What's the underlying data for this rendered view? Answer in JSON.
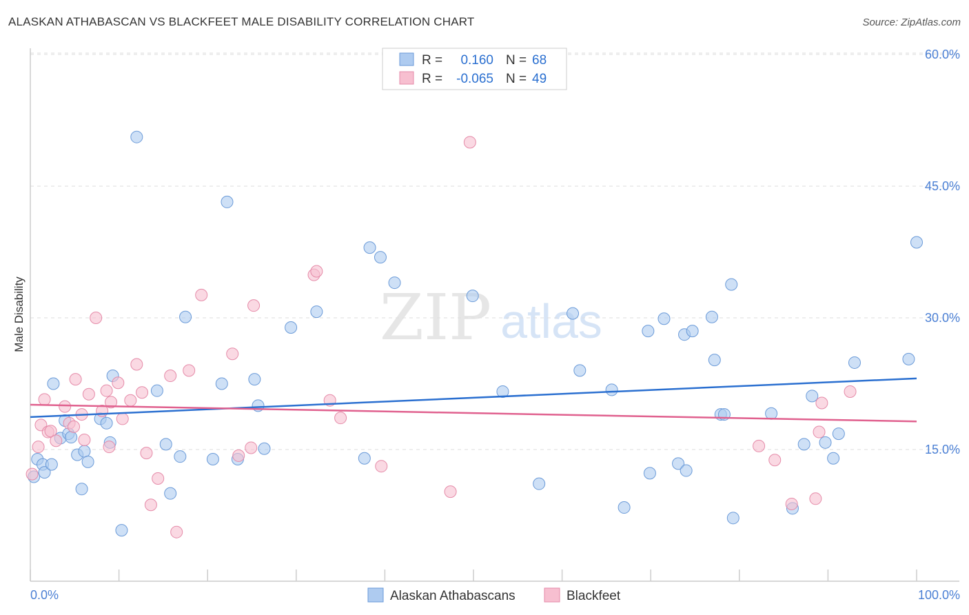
{
  "title": "ALASKAN ATHABASCAN VS BLACKFEET MALE DISABILITY CORRELATION CHART",
  "source": "Source: ZipAtlas.com",
  "watermark": {
    "zip": "ZIP",
    "atlas": "atlas"
  },
  "colors": {
    "blue_fill": "#aecbf0",
    "blue_stroke": "#6a9ad8",
    "blue_line": "#2a6fd0",
    "pink_fill": "#f7bfd0",
    "pink_stroke": "#e58aa8",
    "pink_line": "#e0608e",
    "tick_text": "#4a7fd4",
    "grid": "#dddddd"
  },
  "legend": {
    "rows": [
      {
        "r_label": "R =",
        "r_value": "0.160",
        "n_label": "N =",
        "n_value": "68",
        "series": "blue"
      },
      {
        "r_label": "R =",
        "r_value": "-0.065",
        "n_label": "N =",
        "n_value": "49",
        "series": "pink"
      }
    ]
  },
  "chart_data": {
    "type": "scatter",
    "title": "ALASKAN ATHABASCAN VS BLACKFEET MALE DISABILITY CORRELATION CHART",
    "xlabel": "",
    "ylabel": "Male Disability",
    "xlim": [
      0,
      100
    ],
    "ylim": [
      0,
      60
    ],
    "x_tick_labels": [
      "0.0%",
      "100.0%"
    ],
    "y_ticks": [
      15,
      30,
      45,
      60
    ],
    "y_tick_labels": [
      "15.0%",
      "30.0%",
      "45.0%",
      "60.0%"
    ],
    "grid": "horizontal dashed",
    "legend_position": "top-center",
    "series": [
      {
        "name": "Alaskan Athabascans",
        "color": "#aecbf0",
        "trend": {
          "x": [
            0,
            100
          ],
          "y": [
            18.7,
            23.1
          ]
        },
        "points": [
          [
            0.4,
            11.9
          ],
          [
            0.8,
            13.9
          ],
          [
            1.4,
            13.3
          ],
          [
            1.6,
            12.4
          ],
          [
            2.4,
            13.3
          ],
          [
            2.6,
            22.5
          ],
          [
            3.4,
            16.3
          ],
          [
            3.9,
            18.3
          ],
          [
            4.3,
            16.8
          ],
          [
            4.6,
            16.4
          ],
          [
            5.3,
            14.4
          ],
          [
            5.8,
            10.5
          ],
          [
            6.1,
            14.8
          ],
          [
            6.5,
            13.6
          ],
          [
            7.9,
            18.5
          ],
          [
            8.6,
            18.0
          ],
          [
            9.0,
            15.8
          ],
          [
            9.3,
            23.4
          ],
          [
            10.3,
            5.8
          ],
          [
            12.0,
            50.6
          ],
          [
            14.3,
            21.7
          ],
          [
            15.3,
            15.6
          ],
          [
            15.8,
            10.0
          ],
          [
            16.9,
            14.2
          ],
          [
            17.5,
            30.1
          ],
          [
            20.6,
            13.9
          ],
          [
            21.6,
            22.5
          ],
          [
            22.2,
            43.2
          ],
          [
            23.4,
            13.9
          ],
          [
            25.3,
            23.0
          ],
          [
            25.7,
            20.0
          ],
          [
            26.4,
            15.1
          ],
          [
            29.4,
            28.9
          ],
          [
            32.3,
            30.7
          ],
          [
            37.7,
            14.0
          ],
          [
            38.3,
            38.0
          ],
          [
            39.5,
            36.9
          ],
          [
            41.1,
            34.0
          ],
          [
            49.9,
            32.5
          ],
          [
            53.3,
            21.6
          ],
          [
            57.4,
            11.1
          ],
          [
            61.2,
            30.5
          ],
          [
            62.0,
            24.0
          ],
          [
            65.6,
            21.8
          ],
          [
            67.0,
            8.4
          ],
          [
            69.7,
            28.5
          ],
          [
            69.9,
            12.3
          ],
          [
            71.5,
            29.9
          ],
          [
            73.1,
            13.4
          ],
          [
            73.8,
            28.1
          ],
          [
            74.0,
            12.6
          ],
          [
            74.7,
            28.5
          ],
          [
            76.9,
            30.1
          ],
          [
            77.2,
            25.2
          ],
          [
            77.9,
            19.0
          ],
          [
            78.3,
            19.0
          ],
          [
            79.1,
            33.8
          ],
          [
            79.3,
            7.2
          ],
          [
            83.6,
            19.1
          ],
          [
            86.0,
            8.3
          ],
          [
            87.3,
            15.6
          ],
          [
            88.2,
            21.1
          ],
          [
            89.7,
            15.8
          ],
          [
            90.6,
            14.0
          ],
          [
            91.2,
            16.8
          ],
          [
            93.0,
            24.9
          ],
          [
            99.1,
            25.3
          ],
          [
            100.0,
            38.6
          ]
        ]
      },
      {
        "name": "Blackfeet",
        "color": "#f7bfd0",
        "trend": {
          "x": [
            0,
            100
          ],
          "y": [
            20.1,
            18.2
          ]
        },
        "points": [
          [
            0.2,
            12.2
          ],
          [
            0.9,
            15.3
          ],
          [
            1.2,
            17.8
          ],
          [
            1.6,
            20.7
          ],
          [
            2.0,
            17.0
          ],
          [
            2.3,
            17.1
          ],
          [
            2.9,
            16.0
          ],
          [
            3.9,
            19.9
          ],
          [
            4.4,
            18.0
          ],
          [
            4.9,
            17.6
          ],
          [
            5.1,
            23.0
          ],
          [
            5.8,
            19.0
          ],
          [
            6.1,
            16.1
          ],
          [
            6.6,
            21.3
          ],
          [
            7.4,
            30.0
          ],
          [
            8.1,
            19.4
          ],
          [
            8.6,
            21.7
          ],
          [
            8.9,
            15.3
          ],
          [
            9.1,
            20.4
          ],
          [
            9.9,
            22.6
          ],
          [
            10.4,
            18.5
          ],
          [
            11.3,
            20.6
          ],
          [
            12.0,
            24.7
          ],
          [
            12.6,
            21.5
          ],
          [
            13.1,
            14.6
          ],
          [
            13.6,
            8.7
          ],
          [
            14.4,
            11.7
          ],
          [
            15.8,
            23.4
          ],
          [
            16.5,
            5.6
          ],
          [
            17.9,
            24.0
          ],
          [
            19.3,
            32.6
          ],
          [
            22.8,
            25.9
          ],
          [
            23.5,
            14.3
          ],
          [
            24.9,
            15.2
          ],
          [
            25.2,
            31.4
          ],
          [
            32.0,
            34.9
          ],
          [
            32.3,
            35.3
          ],
          [
            33.8,
            20.6
          ],
          [
            35.0,
            18.6
          ],
          [
            39.6,
            13.1
          ],
          [
            47.4,
            10.2
          ],
          [
            49.6,
            50.0
          ],
          [
            82.2,
            15.4
          ],
          [
            84.0,
            13.8
          ],
          [
            85.9,
            8.8
          ],
          [
            88.6,
            9.4
          ],
          [
            89.0,
            17.0
          ],
          [
            89.3,
            20.3
          ],
          [
            92.5,
            21.6
          ]
        ]
      }
    ]
  },
  "bottom_legend": {
    "items": [
      {
        "label": "Alaskan Athabascans",
        "series": "blue"
      },
      {
        "label": "Blackfeet",
        "series": "pink"
      }
    ]
  }
}
